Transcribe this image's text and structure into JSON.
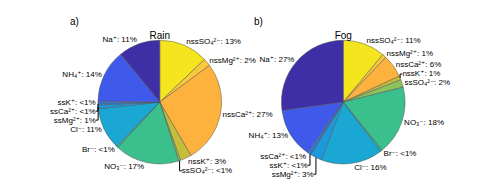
{
  "chart_data": [
    {
      "type": "pie",
      "title": "Rain",
      "annotation": "a)",
      "categories": [
        "nssSO₄²⁻",
        "nssMg²⁺",
        "nssCa²⁺",
        "nssK⁺",
        "ssSO₄²⁻",
        "NO₃⁻",
        "Br⁻",
        "Cl⁻",
        "ssMg²⁺",
        "ssCa²⁺",
        "ssK⁺",
        "NH₄⁺",
        "Na⁺"
      ],
      "values": [
        13,
        2,
        27,
        3,
        0.5,
        17,
        0.5,
        11,
        1,
        0.5,
        0.5,
        14,
        11
      ],
      "value_labels": [
        "nssSO₄²⁻: 13%",
        "nssMg²⁺: 2%",
        "nssCa²⁺: 27%",
        "nssK⁺: 3%",
        "ssSO₄²⁻: <1%",
        "NO₃⁻: 17%",
        "Br⁻: <1%",
        "Cl⁻: 11%",
        "ssMg²⁺: 1%",
        "ssCa²⁺: <1%",
        "ssK⁺: <1%",
        "NH₄⁺: 14%",
        "Na⁺: 11%"
      ],
      "colors": [
        "#f5e51f",
        "#fbc83a",
        "#fcb23c",
        "#c6bd3a",
        "#8cc25b",
        "#3bbf8c",
        "#22b7a6",
        "#1aa7d3",
        "#1c98dc",
        "#2485e3",
        "#2c72e8",
        "#3f5aeb",
        "#3e2fa6"
      ],
      "data_labels": true
    },
    {
      "type": "pie",
      "title": "Fog",
      "annotation": "b)",
      "categories": [
        "nssSO₄²⁻",
        "nssMg²⁺",
        "nssCa²⁺",
        "nssK⁺",
        "ssSO₄²⁻",
        "NO₃⁻",
        "Br⁻",
        "Cl⁻",
        "ssMg²⁺",
        "ssK⁺",
        "ssCa²⁺",
        "NH₄⁺",
        "Na⁺"
      ],
      "values": [
        11,
        1,
        6,
        1,
        2,
        18,
        0.5,
        16,
        3,
        0.5,
        0.5,
        13,
        27
      ],
      "value_labels": [
        "nssSO₄²⁻: 11%",
        "nssMg²⁺: 1%",
        "nssCa²⁺: 6%",
        "nssK⁺: 1%",
        "ssSO₄²⁻: 2%",
        "NO₃⁻: 18%",
        "Br⁻: <1%",
        "Cl⁻: 16%",
        "ssMg²⁺: 3%",
        "ssK⁺: <1%",
        "ssCa²⁺: <1%",
        "NH₄⁺: 13%",
        "Na⁺: 27%"
      ],
      "colors": [
        "#f5e51f",
        "#fbc83a",
        "#fcb23c",
        "#c6bd3a",
        "#8cc25b",
        "#3bbf8c",
        "#22b7a6",
        "#1aa7d3",
        "#1c98dc",
        "#2c72e8",
        "#2485e3",
        "#3f5aeb",
        "#3e2fa6"
      ],
      "data_labels": true
    }
  ]
}
